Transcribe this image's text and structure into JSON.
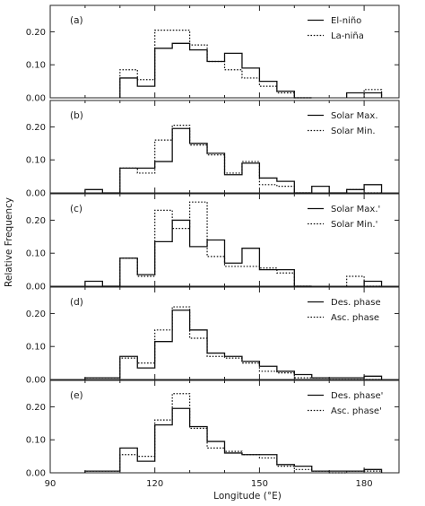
{
  "chart_data": {
    "type": "histogram-step",
    "ylabel": "Relative Frequency",
    "xlabel": "Longitude (°E)",
    "xlim": [
      90,
      190
    ],
    "ylim": [
      0,
      0.28
    ],
    "x_ticks": [
      "90",
      "120",
      "150",
      "180"
    ],
    "y_ticks": [
      "0.00",
      "0.10",
      "0.20"
    ],
    "bin_width": 5,
    "panels": [
      {
        "label": "(a)",
        "series": [
          {
            "name": "El-niño",
            "style": "solid",
            "bins": [
              [
                110,
                0.06
              ],
              [
                115,
                0.035
              ],
              [
                120,
                0.15
              ],
              [
                125,
                0.165
              ],
              [
                130,
                0.145
              ],
              [
                135,
                0.11
              ],
              [
                140,
                0.135
              ],
              [
                145,
                0.09
              ],
              [
                150,
                0.05
              ],
              [
                155,
                0.02
              ],
              [
                160,
                0.0
              ],
              [
                175,
                0.015
              ],
              [
                180,
                0.015
              ]
            ]
          },
          {
            "name": "La-niña",
            "style": "dotted",
            "bins": [
              [
                110,
                0.085
              ],
              [
                115,
                0.055
              ],
              [
                120,
                0.205
              ],
              [
                125,
                0.205
              ],
              [
                130,
                0.16
              ],
              [
                135,
                0.11
              ],
              [
                140,
                0.085
              ],
              [
                145,
                0.06
              ],
              [
                150,
                0.035
              ],
              [
                155,
                0.015
              ],
              [
                160,
                0.0
              ],
              [
                180,
                0.025
              ]
            ]
          }
        ]
      },
      {
        "label": "(b)",
        "series": [
          {
            "name": "Solar Max.",
            "style": "solid",
            "bins": [
              [
                100,
                0.01
              ],
              [
                105,
                0.0
              ],
              [
                110,
                0.075
              ],
              [
                115,
                0.075
              ],
              [
                120,
                0.095
              ],
              [
                125,
                0.195
              ],
              [
                130,
                0.15
              ],
              [
                135,
                0.12
              ],
              [
                140,
                0.055
              ],
              [
                145,
                0.09
              ],
              [
                150,
                0.045
              ],
              [
                155,
                0.035
              ],
              [
                160,
                0.0
              ],
              [
                165,
                0.02
              ],
              [
                170,
                0.0
              ],
              [
                175,
                0.01
              ],
              [
                180,
                0.025
              ]
            ]
          },
          {
            "name": "Solar Min.",
            "style": "dotted",
            "bins": [
              [
                110,
                0.075
              ],
              [
                115,
                0.06
              ],
              [
                120,
                0.16
              ],
              [
                125,
                0.205
              ],
              [
                130,
                0.145
              ],
              [
                135,
                0.115
              ],
              [
                140,
                0.06
              ],
              [
                145,
                0.095
              ],
              [
                150,
                0.025
              ],
              [
                155,
                0.02
              ],
              [
                160,
                0.0
              ],
              [
                175,
                0.01
              ],
              [
                180,
                0.0
              ]
            ]
          }
        ]
      },
      {
        "label": "(c)",
        "series": [
          {
            "name": "Solar Max.'",
            "style": "solid",
            "bins": [
              [
                100,
                0.015
              ],
              [
                105,
                0.0
              ],
              [
                110,
                0.085
              ],
              [
                115,
                0.035
              ],
              [
                120,
                0.135
              ],
              [
                125,
                0.2
              ],
              [
                130,
                0.12
              ],
              [
                135,
                0.14
              ],
              [
                140,
                0.07
              ],
              [
                145,
                0.115
              ],
              [
                150,
                0.05
              ],
              [
                155,
                0.05
              ],
              [
                160,
                0.0
              ],
              [
                180,
                0.015
              ]
            ]
          },
          {
            "name": "Solar Min.'",
            "style": "dotted",
            "bins": [
              [
                110,
                0.085
              ],
              [
                115,
                0.03
              ],
              [
                120,
                0.23
              ],
              [
                125,
                0.175
              ],
              [
                130,
                0.255
              ],
              [
                135,
                0.09
              ],
              [
                140,
                0.06
              ],
              [
                145,
                0.06
              ],
              [
                150,
                0.055
              ],
              [
                155,
                0.04
              ],
              [
                160,
                0.0
              ],
              [
                175,
                0.03
              ],
              [
                180,
                0.0
              ]
            ]
          }
        ]
      },
      {
        "label": "(d)",
        "series": [
          {
            "name": "Des. phase",
            "style": "solid",
            "bins": [
              [
                100,
                0.005
              ],
              [
                105,
                0.005
              ],
              [
                110,
                0.07
              ],
              [
                115,
                0.035
              ],
              [
                120,
                0.115
              ],
              [
                125,
                0.21
              ],
              [
                130,
                0.15
              ],
              [
                135,
                0.08
              ],
              [
                140,
                0.07
              ],
              [
                145,
                0.055
              ],
              [
                150,
                0.04
              ],
              [
                155,
                0.025
              ],
              [
                160,
                0.015
              ],
              [
                165,
                0.005
              ],
              [
                170,
                0.005
              ],
              [
                175,
                0.005
              ],
              [
                180,
                0.01
              ]
            ]
          },
          {
            "name": "Asc. phase",
            "style": "dotted",
            "bins": [
              [
                100,
                0.005
              ],
              [
                105,
                0.005
              ],
              [
                110,
                0.065
              ],
              [
                115,
                0.05
              ],
              [
                120,
                0.15
              ],
              [
                125,
                0.22
              ],
              [
                130,
                0.125
              ],
              [
                135,
                0.07
              ],
              [
                140,
                0.065
              ],
              [
                145,
                0.05
              ],
              [
                150,
                0.025
              ],
              [
                155,
                0.02
              ],
              [
                160,
                0.005
              ],
              [
                165,
                0.005
              ],
              [
                170,
                0.0
              ],
              [
                175,
                0.0
              ],
              [
                180,
                0.0
              ]
            ]
          }
        ]
      },
      {
        "label": "(e)",
        "series": [
          {
            "name": "Des. phase'",
            "style": "solid",
            "bins": [
              [
                100,
                0.005
              ],
              [
                105,
                0.005
              ],
              [
                110,
                0.075
              ],
              [
                115,
                0.035
              ],
              [
                120,
                0.145
              ],
              [
                125,
                0.195
              ],
              [
                130,
                0.14
              ],
              [
                135,
                0.095
              ],
              [
                140,
                0.06
              ],
              [
                145,
                0.055
              ],
              [
                150,
                0.055
              ],
              [
                155,
                0.025
              ],
              [
                160,
                0.02
              ],
              [
                165,
                0.005
              ],
              [
                170,
                0.005
              ],
              [
                175,
                0.005
              ],
              [
                180,
                0.01
              ]
            ]
          },
          {
            "name": "Asc. phase'",
            "style": "dotted",
            "bins": [
              [
                100,
                0.005
              ],
              [
                105,
                0.005
              ],
              [
                110,
                0.055
              ],
              [
                115,
                0.05
              ],
              [
                120,
                0.16
              ],
              [
                125,
                0.24
              ],
              [
                130,
                0.135
              ],
              [
                135,
                0.075
              ],
              [
                140,
                0.065
              ],
              [
                145,
                0.055
              ],
              [
                150,
                0.045
              ],
              [
                155,
                0.02
              ],
              [
                160,
                0.01
              ],
              [
                165,
                0.005
              ],
              [
                170,
                0.0
              ],
              [
                175,
                0.005
              ],
              [
                180,
                0.005
              ]
            ]
          }
        ]
      }
    ]
  }
}
